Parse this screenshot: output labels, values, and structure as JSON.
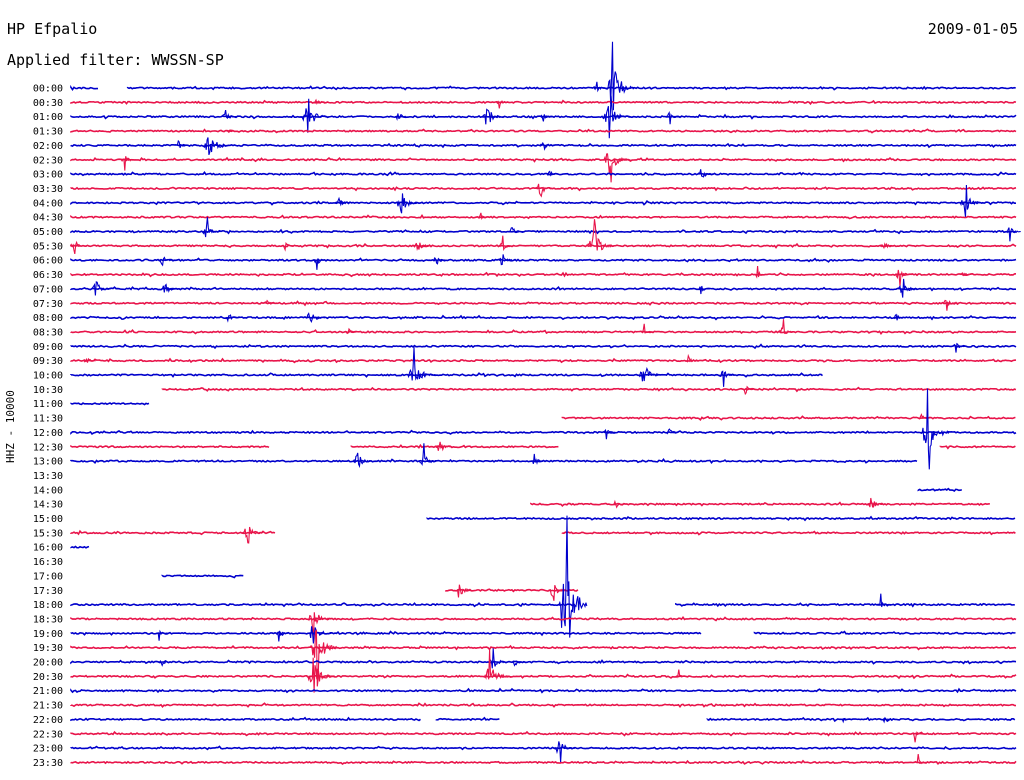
{
  "header": {
    "station": "HP Efpalio",
    "date": "2009-01-05",
    "filter": "Applied filter: WWSSN-SP",
    "channel_label": "HHZ - 10000"
  },
  "colors": {
    "blue": "#0000cc",
    "red": "#e8144a"
  },
  "chart_data": {
    "type": "line",
    "title": "HP Efpalio",
    "subtitle": "Applied filter: WWSSN-SP",
    "ylabel": "HHZ - 10000",
    "xlabel": "",
    "grid": false,
    "legend": "none",
    "x_unit": "minutes within row (0-30)",
    "rows": [
      {
        "label": "00:00",
        "color": "blue",
        "segments": [
          [
            0,
            0.9
          ],
          [
            1.8,
            30
          ]
        ],
        "events": [
          {
            "t": 16.7,
            "amp": 0.3
          },
          {
            "t": 17.2,
            "amp": 2.0
          }
        ]
      },
      {
        "label": "00:30",
        "color": "red",
        "segments": [
          [
            0,
            30
          ]
        ],
        "events": [
          {
            "t": 7.8,
            "amp": 0.4
          },
          {
            "t": 13.6,
            "amp": 0.3
          }
        ]
      },
      {
        "label": "01:00",
        "color": "blue",
        "segments": [
          [
            0,
            30
          ]
        ],
        "events": [
          {
            "t": 4.9,
            "amp": 0.4
          },
          {
            "t": 7.5,
            "amp": 1.0
          },
          {
            "t": 10.4,
            "amp": 0.4
          },
          {
            "t": 13.2,
            "amp": 0.8
          },
          {
            "t": 15.0,
            "amp": 0.3
          },
          {
            "t": 17.1,
            "amp": 1.0
          },
          {
            "t": 19.0,
            "amp": 0.5
          }
        ]
      },
      {
        "label": "01:30",
        "color": "red",
        "segments": [
          [
            0,
            30
          ]
        ],
        "events": [
          {
            "t": 5.0,
            "amp": 0.2
          }
        ]
      },
      {
        "label": "02:00",
        "color": "blue",
        "segments": [
          [
            0,
            30
          ]
        ],
        "events": [
          {
            "t": 3.4,
            "amp": 0.4
          },
          {
            "t": 4.4,
            "amp": 0.9
          },
          {
            "t": 15.0,
            "amp": 0.4
          }
        ]
      },
      {
        "label": "02:30",
        "color": "red",
        "segments": [
          [
            0,
            30
          ]
        ],
        "events": [
          {
            "t": 1.7,
            "amp": 0.4
          },
          {
            "t": 17.1,
            "amp": 1.0
          }
        ]
      },
      {
        "label": "03:00",
        "color": "blue",
        "segments": [
          [
            0,
            30
          ]
        ],
        "events": [
          {
            "t": 15.2,
            "amp": 0.3
          },
          {
            "t": 20.0,
            "amp": 0.5
          }
        ]
      },
      {
        "label": "03:30",
        "color": "red",
        "segments": [
          [
            0,
            30
          ]
        ],
        "events": [
          {
            "t": 14.9,
            "amp": 0.6
          }
        ]
      },
      {
        "label": "04:00",
        "color": "blue",
        "segments": [
          [
            0,
            30
          ]
        ],
        "events": [
          {
            "t": 8.5,
            "amp": 0.4
          },
          {
            "t": 10.5,
            "amp": 0.8
          },
          {
            "t": 28.4,
            "amp": 0.8
          }
        ]
      },
      {
        "label": "04:30",
        "color": "red",
        "segments": [
          [
            0,
            30
          ]
        ],
        "events": [
          {
            "t": 13.0,
            "amp": 0.2
          }
        ]
      },
      {
        "label": "05:00",
        "color": "blue",
        "segments": [
          [
            0,
            30
          ]
        ],
        "events": [
          {
            "t": 4.3,
            "amp": 0.6
          },
          {
            "t": 14.0,
            "amp": 0.4
          },
          {
            "t": 29.8,
            "amp": 0.4
          }
        ]
      },
      {
        "label": "05:30",
        "color": "red",
        "segments": [
          [
            0,
            30
          ]
        ],
        "events": [
          {
            "t": 0.1,
            "amp": 0.5
          },
          {
            "t": 6.8,
            "amp": 0.3
          },
          {
            "t": 11.0,
            "amp": 0.5
          },
          {
            "t": 13.7,
            "amp": 0.4
          },
          {
            "t": 16.6,
            "amp": 1.0
          },
          {
            "t": 25.8,
            "amp": 0.4
          }
        ]
      },
      {
        "label": "06:00",
        "color": "blue",
        "segments": [
          [
            0,
            30
          ]
        ],
        "events": [
          {
            "t": 2.9,
            "amp": 0.4
          },
          {
            "t": 7.8,
            "amp": 0.4
          },
          {
            "t": 11.6,
            "amp": 0.4
          },
          {
            "t": 13.7,
            "amp": 0.5
          }
        ]
      },
      {
        "label": "06:30",
        "color": "red",
        "segments": [
          [
            0,
            30
          ]
        ],
        "events": [
          {
            "t": 21.8,
            "amp": 0.3
          },
          {
            "t": 26.3,
            "amp": 0.5
          },
          {
            "t": 28.3,
            "amp": 0.3
          }
        ]
      },
      {
        "label": "07:00",
        "color": "blue",
        "segments": [
          [
            0,
            30
          ]
        ],
        "events": [
          {
            "t": 0.8,
            "amp": 0.6
          },
          {
            "t": 3.0,
            "amp": 0.5
          },
          {
            "t": 20.0,
            "amp": 0.3
          },
          {
            "t": 26.4,
            "amp": 0.6
          }
        ]
      },
      {
        "label": "07:30",
        "color": "red",
        "segments": [
          [
            0,
            30
          ]
        ],
        "events": [
          {
            "t": 6.2,
            "amp": 0.3
          },
          {
            "t": 27.8,
            "amp": 0.4
          }
        ]
      },
      {
        "label": "08:00",
        "color": "blue",
        "segments": [
          [
            0,
            30
          ]
        ],
        "events": [
          {
            "t": 5.0,
            "amp": 0.4
          },
          {
            "t": 7.6,
            "amp": 0.6
          },
          {
            "t": 26.2,
            "amp": 0.3
          }
        ]
      },
      {
        "label": "08:30",
        "color": "red",
        "segments": [
          [
            0,
            30
          ]
        ],
        "events": [
          {
            "t": 8.8,
            "amp": 0.3
          },
          {
            "t": 18.2,
            "amp": 0.3
          },
          {
            "t": 22.6,
            "amp": 0.5
          }
        ]
      },
      {
        "label": "09:00",
        "color": "blue",
        "segments": [
          [
            0,
            30
          ]
        ],
        "events": [
          {
            "t": 28.1,
            "amp": 0.3
          }
        ]
      },
      {
        "label": "09:30",
        "color": "red",
        "segments": [
          [
            0,
            30
          ]
        ],
        "events": [
          {
            "t": 0.5,
            "amp": 0.3
          },
          {
            "t": 19.6,
            "amp": 0.3
          }
        ]
      },
      {
        "label": "10:00",
        "color": "blue",
        "segments": [
          [
            0,
            23.9
          ]
        ],
        "events": [
          {
            "t": 10.9,
            "amp": 1.0
          },
          {
            "t": 18.2,
            "amp": 0.8
          },
          {
            "t": 20.7,
            "amp": 0.5
          }
        ]
      },
      {
        "label": "10:30",
        "color": "red",
        "segments": [
          [
            2.9,
            30
          ]
        ],
        "events": [
          {
            "t": 21.4,
            "amp": 0.4
          }
        ]
      },
      {
        "label": "11:00",
        "color": "blue",
        "segments": [
          [
            0,
            2.5
          ]
        ],
        "events": []
      },
      {
        "label": "11:30",
        "color": "red",
        "segments": [
          [
            15.6,
            30
          ]
        ],
        "events": [
          {
            "t": 27.0,
            "amp": 0.3
          }
        ]
      },
      {
        "label": "12:00",
        "color": "blue",
        "segments": [
          [
            0,
            30
          ]
        ],
        "events": [
          {
            "t": 17.0,
            "amp": 0.3
          },
          {
            "t": 19.0,
            "amp": 0.3
          },
          {
            "t": 27.2,
            "amp": 2.0
          }
        ]
      },
      {
        "label": "12:30",
        "color": "red",
        "segments": [
          [
            0,
            6.3
          ],
          [
            8.9,
            15.5
          ],
          [
            27.6,
            30
          ]
        ],
        "events": [
          {
            "t": 11.7,
            "amp": 0.5
          }
        ]
      },
      {
        "label": "13:00",
        "color": "blue",
        "segments": [
          [
            0,
            26.9
          ]
        ],
        "events": [
          {
            "t": 9.1,
            "amp": 0.6
          },
          {
            "t": 11.2,
            "amp": 0.6
          },
          {
            "t": 14.7,
            "amp": 0.4
          }
        ]
      },
      {
        "label": "13:30",
        "color": "red",
        "segments": [],
        "events": []
      },
      {
        "label": "14:00",
        "color": "blue",
        "segments": [
          [
            26.9,
            28.3
          ]
        ],
        "events": []
      },
      {
        "label": "14:30",
        "color": "red",
        "segments": [
          [
            14.6,
            29.2
          ]
        ],
        "events": [
          {
            "t": 17.3,
            "amp": 0.3
          },
          {
            "t": 25.4,
            "amp": 0.5
          }
        ]
      },
      {
        "label": "15:00",
        "color": "blue",
        "segments": [
          [
            11.3,
            30
          ]
        ],
        "events": []
      },
      {
        "label": "15:30",
        "color": "red",
        "segments": [
          [
            0,
            6.5
          ],
          [
            15.6,
            30
          ]
        ],
        "events": [
          {
            "t": 5.6,
            "amp": 0.7
          }
        ]
      },
      {
        "label": "16:00",
        "color": "blue",
        "segments": [
          [
            0,
            0.6
          ]
        ],
        "events": []
      },
      {
        "label": "16:30",
        "color": "red",
        "segments": [],
        "events": []
      },
      {
        "label": "17:00",
        "color": "blue",
        "segments": [
          [
            2.9,
            5.5
          ]
        ],
        "events": []
      },
      {
        "label": "17:30",
        "color": "red",
        "segments": [
          [
            11.9,
            16.1
          ]
        ],
        "events": [
          {
            "t": 12.3,
            "amp": 0.6
          },
          {
            "t": 15.3,
            "amp": 0.6
          }
        ]
      },
      {
        "label": "18:00",
        "color": "blue",
        "segments": [
          [
            0,
            16.0
          ],
          [
            19.2,
            30
          ]
        ],
        "events": [
          {
            "t": 15.7,
            "amp": 5.0
          },
          {
            "t": 25.7,
            "amp": 0.4
          }
        ]
      },
      {
        "label": "18:30",
        "color": "red",
        "segments": [
          [
            0,
            30
          ]
        ],
        "events": [
          {
            "t": 7.7,
            "amp": 0.8
          }
        ]
      },
      {
        "label": "19:00",
        "color": "blue",
        "segments": [
          [
            0,
            20.0
          ],
          [
            21.7,
            30
          ]
        ],
        "events": [
          {
            "t": 2.8,
            "amp": 0.3
          },
          {
            "t": 6.6,
            "amp": 0.3
          },
          {
            "t": 7.7,
            "amp": 0.8
          }
        ]
      },
      {
        "label": "19:30",
        "color": "red",
        "segments": [
          [
            0,
            30
          ]
        ],
        "events": [
          {
            "t": 7.8,
            "amp": 1.6
          }
        ]
      },
      {
        "label": "20:00",
        "color": "blue",
        "segments": [
          [
            0,
            30
          ]
        ],
        "events": [
          {
            "t": 2.9,
            "amp": 0.3
          },
          {
            "t": 13.4,
            "amp": 0.6
          },
          {
            "t": 14.1,
            "amp": 0.4
          }
        ]
      },
      {
        "label": "20:30",
        "color": "red",
        "segments": [
          [
            0,
            30
          ]
        ],
        "events": [
          {
            "t": 7.7,
            "amp": 1.0
          },
          {
            "t": 13.3,
            "amp": 1.0
          },
          {
            "t": 19.3,
            "amp": 0.3
          }
        ]
      },
      {
        "label": "21:00",
        "color": "blue",
        "segments": [
          [
            0,
            30
          ]
        ],
        "events": []
      },
      {
        "label": "21:30",
        "color": "red",
        "segments": [
          [
            0,
            30
          ]
        ],
        "events": []
      },
      {
        "label": "22:00",
        "color": "blue",
        "segments": [
          [
            0,
            11.1
          ],
          [
            11.6,
            13.6
          ],
          [
            20.2,
            30
          ]
        ],
        "events": [
          {
            "t": 24.5,
            "amp": 0.2
          },
          {
            "t": 25.8,
            "amp": 0.2
          }
        ]
      },
      {
        "label": "22:30",
        "color": "red",
        "segments": [
          [
            0,
            30
          ]
        ],
        "events": [
          {
            "t": 26.8,
            "amp": 0.3
          }
        ]
      },
      {
        "label": "23:00",
        "color": "blue",
        "segments": [
          [
            0,
            30
          ]
        ],
        "events": [
          {
            "t": 15.5,
            "amp": 0.7
          }
        ]
      },
      {
        "label": "23:30",
        "color": "red",
        "segments": [
          [
            0,
            30
          ]
        ],
        "events": [
          {
            "t": 26.9,
            "amp": 0.3
          }
        ]
      }
    ]
  }
}
